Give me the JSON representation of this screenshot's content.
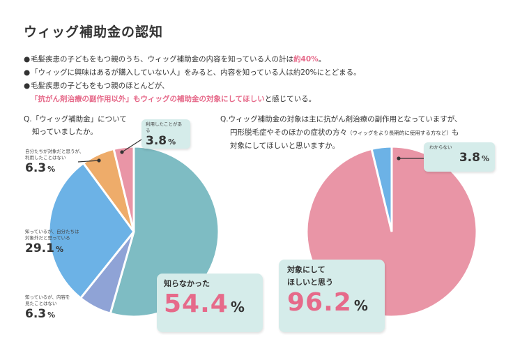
{
  "title": "ウィッグ補助金の認知",
  "bullets": [
    {
      "pre": "毛髪疾患の子どもをもつ親のうち、ウィッグ補助金の内容を知っている人の計は",
      "hl": "約40%",
      "post": "。"
    },
    {
      "pre": "「ウィッグに興味はあるが購入していない人」をみると、内容を知っている人は約20%にとどまる。",
      "hl": "",
      "post": ""
    },
    {
      "pre": "毛髪疾患の子どもをもつ親のほとんどが、",
      "hl": "",
      "post": ""
    }
  ],
  "bullet3_line2": {
    "hl": "「抗がん剤治療の副作用以外」もウィッグの補助金の対象にしてほしい",
    "post": "と感じている。"
  },
  "q1": {
    "line1": "Q.「ウィッグ補助金」について",
    "line2": "知っていましたか。"
  },
  "q2": {
    "line1": "Q.ウィッグ補助金の対象は主に抗がん剤治療の副作用となっていますが、",
    "line2a": "円形脱毛症やそのほかの症状の方々",
    "line2b": "（ウィッグをより長期的に使用する方など）",
    "line2c": "も",
    "line3": "対象にしてほしいと思いますか。"
  },
  "labels1": {
    "used": {
      "cap": "利用したことがある",
      "val": "3.8",
      "pct": "%"
    },
    "thought_ok": {
      "cap1": "自分たちが対象だと思うが、",
      "cap2": "利用したことはない",
      "val": "6.3",
      "pct": "%"
    },
    "thought_out": {
      "cap1": "知っているが、自分たちは",
      "cap2": "対象外だと思っている",
      "val": "29.1",
      "pct": "%"
    },
    "unseen": {
      "cap1": "知っているが、内容を",
      "cap2": "見たことはない",
      "val": "6.3",
      "pct": "%"
    },
    "unknown": {
      "cap": "知らなかった",
      "val": "54.4",
      "pct": "%"
    }
  },
  "labels2": {
    "dontknow": {
      "cap": "わからない",
      "val": "3.8",
      "pct": "%"
    },
    "want": {
      "cap1": "対象にして",
      "cap2": "ほしいと思う",
      "val": "96.2",
      "pct": "%"
    }
  },
  "colors": {
    "teal": "#7ebcc3",
    "lavender": "#8fa3d6",
    "blue": "#6cb2e6",
    "orange": "#eeac6a",
    "pink": "#e995a6",
    "box": "#d5ecea",
    "accent": "#e66a8a"
  },
  "chart_data": [
    {
      "type": "pie",
      "title": "Q.「ウィッグ補助金」について知っていましたか。",
      "categories": [
        "知らなかった",
        "知っているが、内容を見たことはない",
        "知っているが、自分たちは対象外だと思っている",
        "自分たちが対象だと思うが、利用したことはない",
        "利用したことがある"
      ],
      "values": [
        54.4,
        6.3,
        29.1,
        6.3,
        3.8
      ],
      "colors": [
        "#7ebcc3",
        "#8fa3d6",
        "#6cb2e6",
        "#eeac6a",
        "#e995a6"
      ]
    },
    {
      "type": "pie",
      "title": "Q.ウィッグ補助金の対象は主に抗がん剤治療の副作用となっていますが、円形脱毛症やそのほかの症状の方々（ウィッグをより長期的に使用する方など）も対象にしてほしいと思いますか。",
      "categories": [
        "対象にしてほしいと思う",
        "わからない"
      ],
      "values": [
        96.2,
        3.8
      ],
      "colors": [
        "#e995a6",
        "#6cb2e6"
      ]
    }
  ]
}
